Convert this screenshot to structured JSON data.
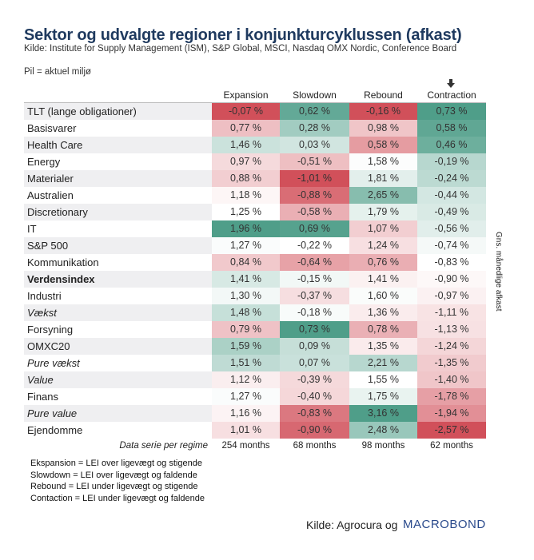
{
  "title": "Sektor og udvalgte regioner i konjunkturcyklussen (afkast)",
  "subtitle": "Kilde: Institute for Supply Management (ISM), S&P Global, MSCI, Nasdaq OMX Nordic, Conference Board",
  "note": "Pil = aktuel miljø",
  "current_regime_arrow": {
    "icon": "arrow-down-icon",
    "column": "Contraction"
  },
  "side_label": "Gns. månedlige afkast",
  "colors": {
    "negative_strong": "#d1505a",
    "neutral": "#ffffff",
    "positive_strong": "#4f9e89",
    "title": "#1f3a5f",
    "macrobond": "#2a4a8c"
  },
  "chart_data": {
    "type": "heatmap",
    "title": "Sektor og udvalgte regioner i konjunkturcyklussen (afkast)",
    "value_label": "Gns. månedlige afkast",
    "unit": "%",
    "columns": [
      "Expansion",
      "Slowdown",
      "Rebound",
      "Contraction"
    ],
    "rows": [
      {
        "name": "TLT (lange obligationer)",
        "style": "normal",
        "values": [
          -0.07,
          0.62,
          -0.16,
          0.73
        ]
      },
      {
        "name": "Basisvarer",
        "style": "normal",
        "values": [
          0.77,
          0.28,
          0.98,
          0.58
        ]
      },
      {
        "name": "Health Care",
        "style": "normal",
        "values": [
          1.46,
          0.03,
          0.58,
          0.46
        ]
      },
      {
        "name": "Energy",
        "style": "normal",
        "values": [
          0.97,
          -0.51,
          1.58,
          -0.19
        ]
      },
      {
        "name": "Materialer",
        "style": "normal",
        "values": [
          0.88,
          -1.01,
          1.81,
          -0.24
        ]
      },
      {
        "name": "Australien",
        "style": "normal",
        "values": [
          1.18,
          -0.88,
          2.65,
          -0.44
        ]
      },
      {
        "name": "Discretionary",
        "style": "normal",
        "values": [
          1.25,
          -0.58,
          1.79,
          -0.49
        ]
      },
      {
        "name": "IT",
        "style": "normal",
        "values": [
          1.96,
          0.69,
          1.07,
          -0.56
        ]
      },
      {
        "name": "S&P 500",
        "style": "normal",
        "values": [
          1.27,
          -0.22,
          1.24,
          -0.74
        ]
      },
      {
        "name": "Kommunikation",
        "style": "normal",
        "values": [
          0.84,
          -0.64,
          0.76,
          -0.83
        ]
      },
      {
        "name": "Verdensindex",
        "style": "bold",
        "values": [
          1.41,
          -0.15,
          1.41,
          -0.9
        ]
      },
      {
        "name": "Industri",
        "style": "normal",
        "values": [
          1.3,
          -0.37,
          1.6,
          -0.97
        ]
      },
      {
        "name": "Vækst",
        "style": "italic",
        "values": [
          1.48,
          -0.18,
          1.36,
          -1.11
        ]
      },
      {
        "name": "Forsyning",
        "style": "normal",
        "values": [
          0.79,
          0.73,
          0.78,
          -1.13
        ]
      },
      {
        "name": "OMXC20",
        "style": "normal",
        "values": [
          1.59,
          0.09,
          1.35,
          -1.24
        ]
      },
      {
        "name": "Pure vækst",
        "style": "italic",
        "values": [
          1.51,
          0.07,
          2.21,
          -1.35
        ]
      },
      {
        "name": "Value",
        "style": "italic",
        "values": [
          1.12,
          -0.39,
          1.55,
          -1.4
        ]
      },
      {
        "name": "Finans",
        "style": "normal",
        "values": [
          1.27,
          -0.4,
          1.75,
          -1.78
        ]
      },
      {
        "name": "Pure value",
        "style": "italic",
        "values": [
          1.16,
          -0.83,
          3.16,
          -1.94
        ]
      },
      {
        "name": "Ejendomme",
        "style": "normal",
        "values": [
          1.01,
          -0.9,
          2.48,
          -2.57
        ]
      }
    ],
    "footer": {
      "label": "Data serie per regime",
      "values": [
        "254 months",
        "68 months",
        "98 months",
        "62 months"
      ]
    }
  },
  "legend": [
    "Ekspansion = LEI over ligevægt og stigende",
    "Slowdown = LEI over ligevægt og faldende",
    "Rebound = LEI under ligevægt og stigende",
    "Contaction = LEI under ligevægt og faldende"
  ],
  "source": {
    "text": "Kilde: Agrocura og",
    "brand": "MACROBOND"
  }
}
